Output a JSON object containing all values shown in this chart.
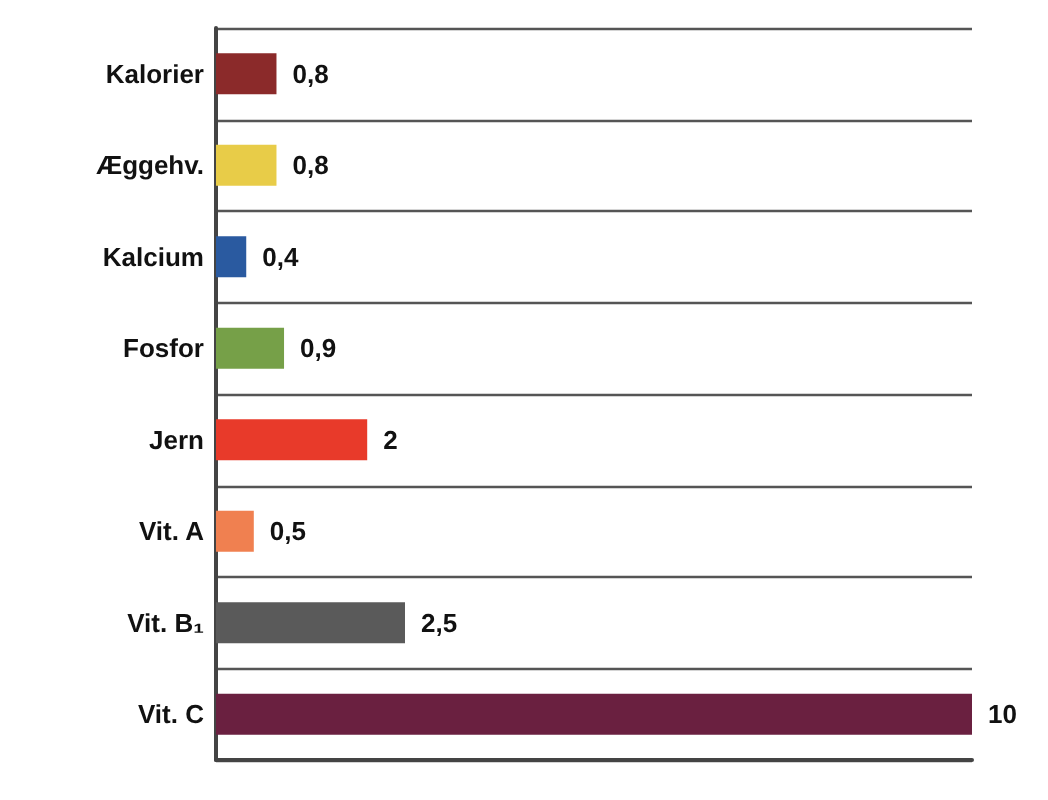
{
  "chart_data": {
    "type": "bar",
    "orientation": "horizontal",
    "categories": [
      "Kalorier",
      "Æggehv.",
      "Kalcium",
      "Fosfor",
      "Jern",
      "Vit. A",
      "Vit. B₁",
      "Vit. C"
    ],
    "values": [
      0.8,
      0.8,
      0.4,
      0.9,
      2,
      0.5,
      2.5,
      10
    ],
    "value_labels": [
      "0,8",
      "0,8",
      "0,4",
      "0,9",
      "2",
      "0,5",
      "2,5",
      "10"
    ],
    "colors": [
      "#8b2a2a",
      "#e8cc48",
      "#2a5aa0",
      "#76a048",
      "#e83a2a",
      "#f08050",
      "#5a5a5a",
      "#6a2040"
    ],
    "grid": true
  }
}
